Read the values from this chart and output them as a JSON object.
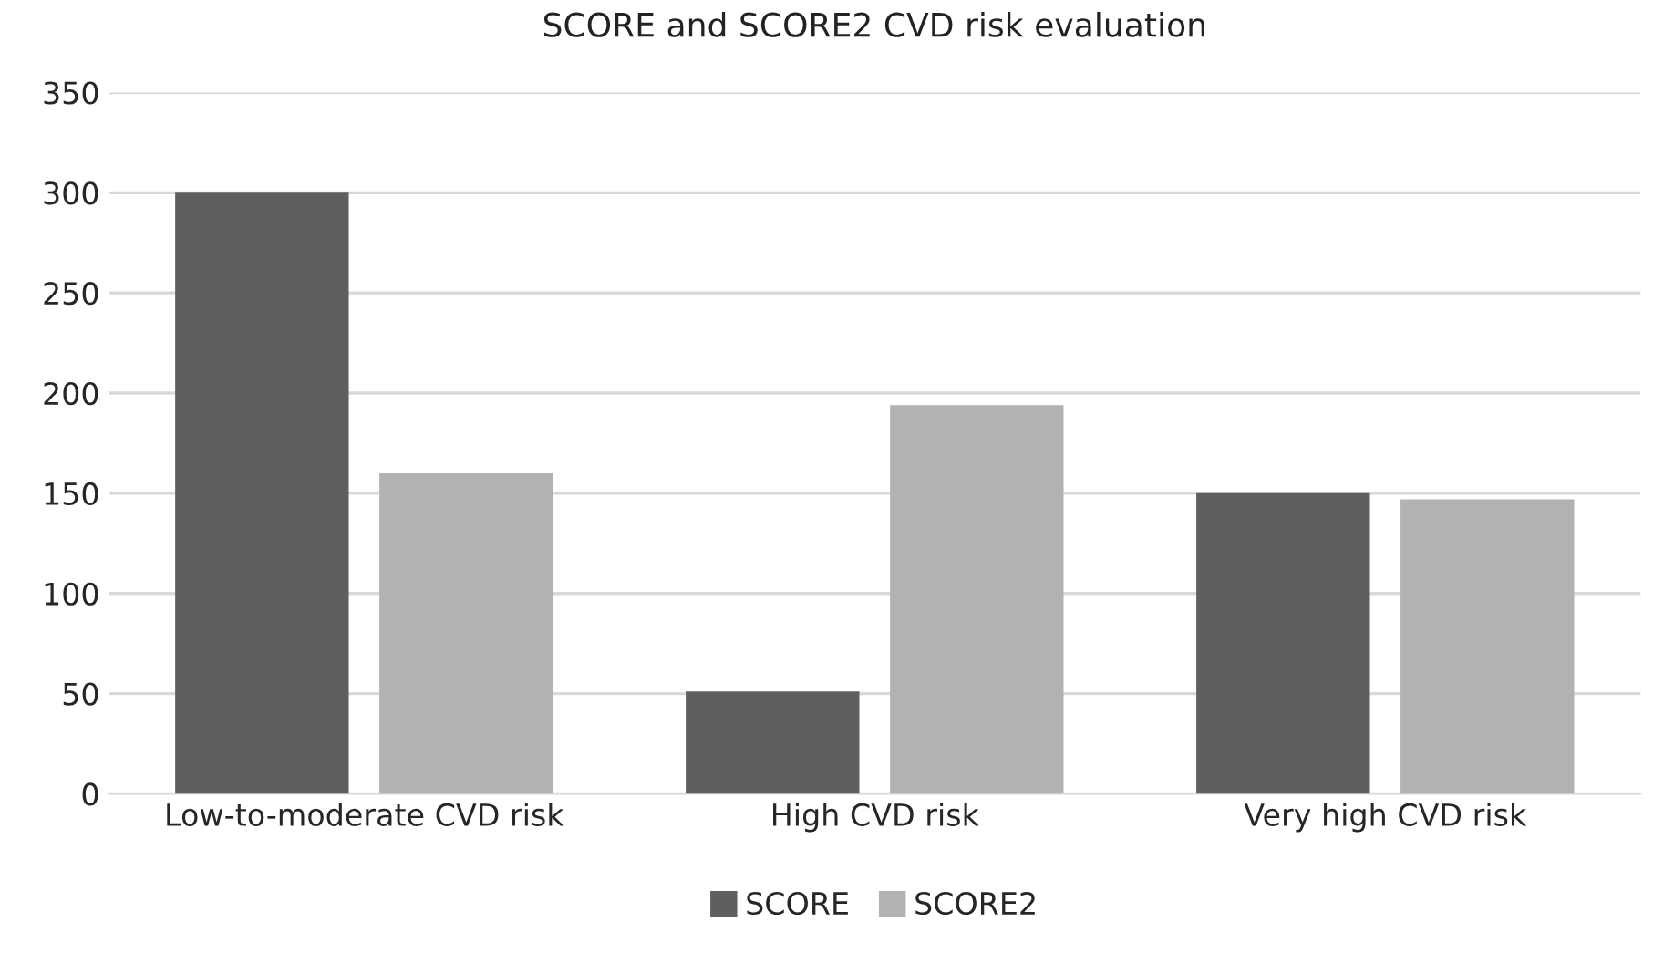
{
  "chart_data": {
    "type": "bar",
    "title": "SCORE and SCORE2 CVD risk evaluation",
    "categories": [
      "Low-to-moderate CVD risk",
      "High CVD risk",
      "Very high CVD risk"
    ],
    "series": [
      {
        "name": "SCORE",
        "color": "#5f5f5f",
        "values": [
          300,
          51,
          150
        ]
      },
      {
        "name": "SCORE2",
        "color": "#b2b2b2",
        "values": [
          160,
          194,
          147
        ]
      }
    ],
    "ylim": [
      0,
      350
    ],
    "yticks": [
      0,
      50,
      100,
      150,
      200,
      250,
      300,
      350
    ],
    "grid": "y",
    "legend": "bottom"
  }
}
